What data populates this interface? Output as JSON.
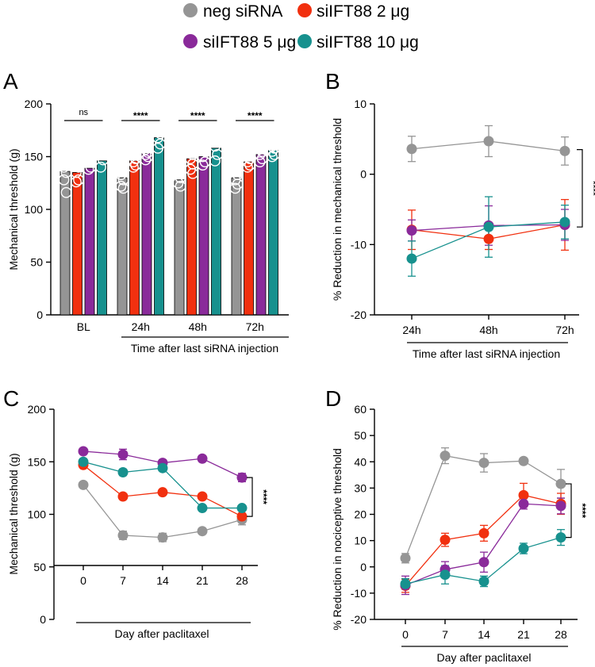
{
  "legend": {
    "entries": [
      {
        "key": "neg",
        "label": "neg siRNA"
      },
      {
        "key": "s2",
        "label": "siIFT88 2 μg"
      },
      {
        "key": "s5",
        "label": "siIFT88 5 μg"
      },
      {
        "key": "s10",
        "label": "siIFT88 10 μg"
      }
    ]
  },
  "colors": {
    "neg": "#959595",
    "s2": "#f1300f",
    "s5": "#8a2a9a",
    "s10": "#17918e"
  },
  "chart_data": [
    {
      "panel": "A",
      "type": "bar",
      "ylabel": "Mechanical threshold (g)",
      "xlabel": "Time after last siRNA injection",
      "ylim": [
        0,
        200
      ],
      "yticks": [
        0,
        50,
        100,
        150,
        200
      ],
      "categories": [
        "BL",
        "24h",
        "48h",
        "72h"
      ],
      "series": [
        {
          "key": "neg",
          "name": "neg siRNA",
          "values": [
            136,
            130,
            128,
            130
          ],
          "points": [
            [
              150,
              145,
              140,
              135,
              128,
              116
            ],
            [
              146,
              138,
              133,
              128,
              122,
              120
            ],
            [
              136,
              130,
              125,
              122
            ],
            [
              155,
              133,
              128,
              124,
              120
            ]
          ]
        },
        {
          "key": "s2",
          "name": "siIFT88 2 μg",
          "values": [
            135,
            146,
            148,
            145
          ],
          "points": [
            [
              145,
              140,
              135,
              128,
              126
            ],
            [
              152,
              148,
              145,
              142,
              140
            ],
            [
              157,
              152,
              148,
              143,
              138,
              134
            ],
            [
              152,
              148,
              145,
              142,
              140
            ]
          ]
        },
        {
          "key": "s5",
          "name": "siIFT88 5 μg",
          "values": [
            139,
            153,
            150,
            152
          ],
          "points": [
            [
              146,
              140,
              138
            ],
            [
              157,
              154,
              152,
              150,
              147
            ],
            [
              159,
              155,
              150,
              145,
              142
            ],
            [
              160,
              155,
              152,
              148,
              145
            ]
          ]
        },
        {
          "key": "s10",
          "name": "siIFT88 10 μg",
          "values": [
            146,
            168,
            158,
            156
          ],
          "points": [
            [
              155,
              147,
              140
            ],
            [
              176,
              172,
              168,
              162,
              158
            ],
            [
              170,
              165,
              160,
              152,
              146
            ],
            [
              160,
              158,
              155,
              152,
              150
            ]
          ]
        }
      ],
      "annotations": [
        "ns",
        "****",
        "****",
        "****"
      ]
    },
    {
      "panel": "B",
      "type": "line",
      "ylabel": "% Reduction in mechanical threshold",
      "xlabel": "Time after last siRNA injection",
      "ylim": [
        -20,
        10
      ],
      "yticks": [
        -20,
        -10,
        0,
        10
      ],
      "categories": [
        "24h",
        "48h",
        "72h"
      ],
      "series": [
        {
          "key": "neg",
          "name": "neg siRNA",
          "values": [
            3.6,
            4.7,
            3.3
          ],
          "errors": [
            1.8,
            2.2,
            2.0
          ]
        },
        {
          "key": "s2",
          "name": "siIFT88 2 μg",
          "values": [
            -7.9,
            -9.2,
            -7.2
          ],
          "errors": [
            2.8,
            1.5,
            3.6
          ]
        },
        {
          "key": "s5",
          "name": "siIFT88 5 μg",
          "values": [
            -8.0,
            -7.3,
            -7.2
          ],
          "errors": [
            1.5,
            2.8,
            2.2
          ]
        },
        {
          "key": "s10",
          "name": "siIFT88 10 μg",
          "values": [
            -12.0,
            -7.5,
            -6.8
          ],
          "errors": [
            2.5,
            4.3,
            2.4
          ]
        }
      ],
      "annotation": "****"
    },
    {
      "panel": "C",
      "type": "line",
      "ylabel": "Mechanical threshold (g)",
      "xlabel": "Day after paclitaxel",
      "ylim": [
        0,
        200
      ],
      "yticks": [
        0,
        50,
        100,
        150,
        200
      ],
      "categories": [
        "0",
        "7",
        "14",
        "21",
        "28"
      ],
      "series": [
        {
          "key": "neg",
          "name": "neg siRNA",
          "values": [
            128,
            80,
            78,
            84,
            95
          ],
          "errors": [
            2,
            4,
            4,
            2,
            5
          ]
        },
        {
          "key": "s2",
          "name": "siIFT88 2 μg",
          "values": [
            147,
            117,
            121,
            117,
            98
          ],
          "errors": [
            2,
            2,
            2,
            2,
            3
          ]
        },
        {
          "key": "s5",
          "name": "siIFT88 5 μg",
          "values": [
            160,
            157,
            149,
            153,
            135
          ],
          "errors": [
            2,
            5,
            3,
            2,
            4
          ]
        },
        {
          "key": "s10",
          "name": "siIFT88 10 μg",
          "values": [
            150,
            140,
            144,
            106,
            106
          ],
          "errors": [
            2,
            3,
            2,
            2,
            2
          ]
        }
      ],
      "annotation": "****"
    },
    {
      "panel": "D",
      "type": "line",
      "ylabel": "% Reduction in nociceptive threshold",
      "xlabel": "Day after paclitaxel",
      "ylim": [
        -20,
        60
      ],
      "yticks": [
        -20,
        -10,
        0,
        10,
        20,
        30,
        40,
        50,
        60
      ],
      "categories": [
        "0",
        "7",
        "14",
        "21",
        "28"
      ],
      "series": [
        {
          "key": "neg",
          "name": "neg siRNA",
          "values": [
            3.3,
            42.3,
            39.6,
            40.3,
            31.6
          ],
          "errors": [
            1.8,
            3.0,
            3.5,
            1.0,
            5.5
          ]
        },
        {
          "key": "s2",
          "name": "siIFT88 2 μg",
          "values": [
            -7.2,
            10.3,
            12.8,
            27.3,
            24.0
          ],
          "errors": [
            2.5,
            2.5,
            3.0,
            4.5,
            4.0
          ]
        },
        {
          "key": "s5",
          "name": "siIFT88 5 μg",
          "values": [
            -7.0,
            -1.0,
            1.8,
            24.0,
            23.2
          ],
          "errors": [
            3.5,
            3.0,
            3.8,
            2.0,
            3.0
          ]
        },
        {
          "key": "s10",
          "name": "siIFT88 10 μg",
          "values": [
            -6.5,
            -3.0,
            -5.5,
            7.0,
            11.2
          ],
          "errors": [
            2.0,
            3.5,
            2.0,
            2.0,
            3.0
          ]
        }
      ],
      "annotation": "****"
    }
  ]
}
